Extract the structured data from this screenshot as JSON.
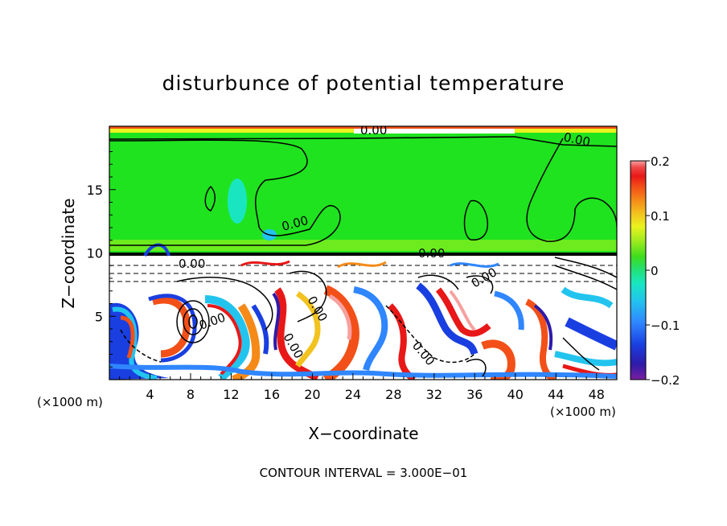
{
  "chart_data": {
    "type": "heatmap",
    "title": "disturbunce of potential temperature",
    "xlabel": "X−coordinate",
    "ylabel": "Z−coordinate",
    "x_unit_left": "(×1000 m)",
    "x_unit_right": "(×1000 m)",
    "footer": "CONTOUR INTERVAL = 3.000E−01",
    "xlim": [
      0,
      50
    ],
    "ylim": [
      0,
      20
    ],
    "x_ticks": [
      4,
      8,
      12,
      16,
      20,
      24,
      28,
      32,
      36,
      40,
      44,
      48
    ],
    "y_ticks": [
      5,
      10,
      15
    ],
    "colorbar": {
      "range": [
        -0.2,
        0.2
      ],
      "tick_values": [
        0.2,
        0.1,
        0,
        -0.1,
        -0.2
      ],
      "tick_labels": [
        "0.2",
        "0.1",
        "0",
        "−0.1",
        "−0.2"
      ],
      "colors": [
        "#7b1fa2",
        "#2e1ba8",
        "#1a3fe0",
        "#2f86ff",
        "#22c4ee",
        "#19e6c0",
        "#22e07a",
        "#3cdc1e",
        "#a6ec1e",
        "#eaf21e",
        "#f2c21e",
        "#f58a18",
        "#f25018",
        "#e81818",
        "#f04848",
        "#f7a0a0"
      ]
    },
    "contour_labels": [
      "0.00",
      "0.00",
      "0.00",
      "0.00",
      "0.00",
      "0.00",
      "0.00",
      "0.00",
      "0.00",
      "0.00"
    ],
    "contour_interval": 0.3
  }
}
